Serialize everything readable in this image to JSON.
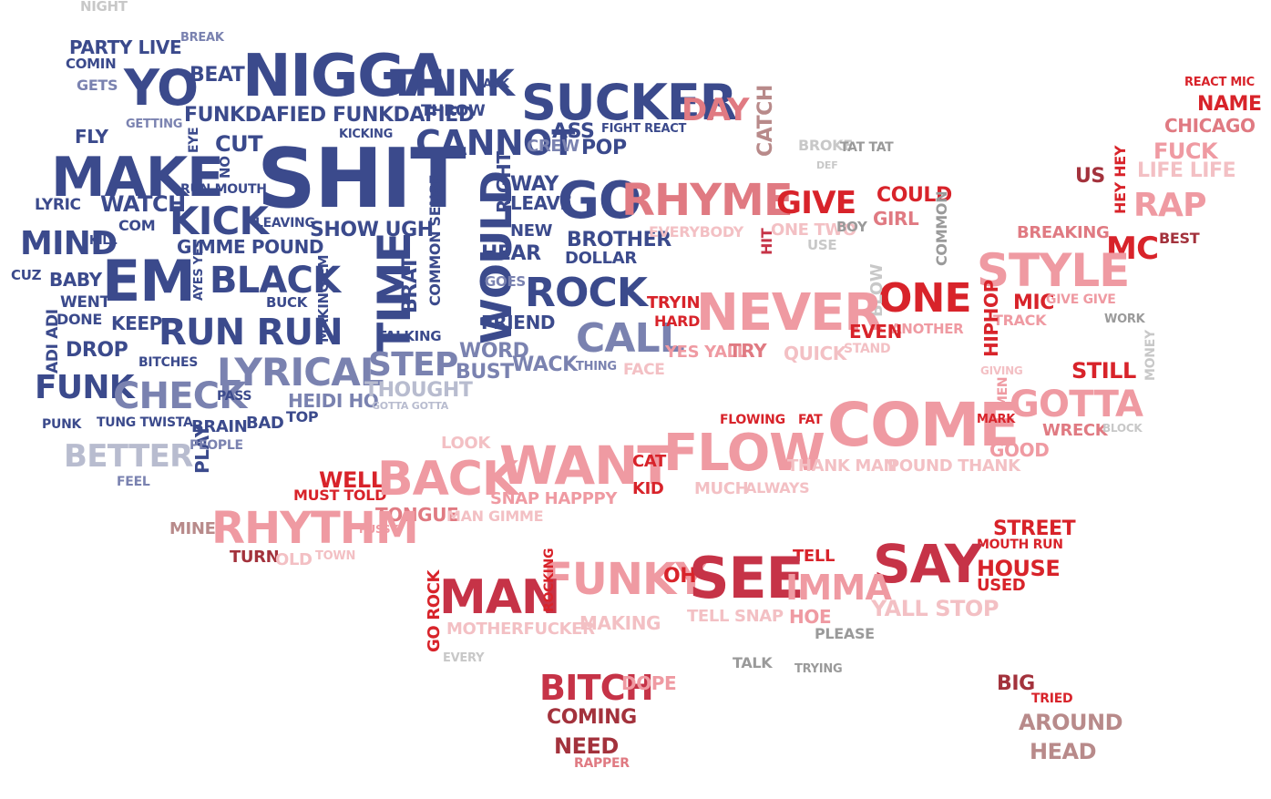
{
  "palette": {
    "navy": "#3b4a8c",
    "blue": "#4f5b9b",
    "slate": "#7a82b0",
    "lavender": "#b8bccf",
    "gray": "#9a9a9a",
    "lightgray": "#c8c8c8",
    "red": "#d8232a",
    "crimson": "#c63347",
    "maroon": "#a3323c",
    "rose": "#e07a82",
    "pink": "#ef9aa2",
    "lightpink": "#f3c0c4",
    "mauve": "#b88a8a"
  },
  "words": [
    {
      "text": "NIGHT",
      "color": "lightgray"
    },
    {
      "text": "PARTY LIVE",
      "color": "navy"
    },
    {
      "text": "BREAK",
      "color": "slate"
    },
    {
      "text": "COMIN",
      "color": "navy"
    },
    {
      "text": "GETS",
      "color": "slate"
    },
    {
      "text": "YO",
      "color": "navy"
    },
    {
      "text": "BEAT",
      "color": "navy"
    },
    {
      "text": "NIGGA",
      "color": "navy"
    },
    {
      "text": "THINK",
      "color": "navy"
    },
    {
      "text": "ASK",
      "color": "navy"
    },
    {
      "text": "SUCKER",
      "color": "navy"
    },
    {
      "text": "THROW",
      "color": "navy"
    },
    {
      "text": "GETTING",
      "color": "slate"
    },
    {
      "text": "FUNKDAFIED FUNKDAFIED",
      "color": "navy"
    },
    {
      "text": "FLY",
      "color": "navy"
    },
    {
      "text": "EYE",
      "color": "navy"
    },
    {
      "text": "CUT",
      "color": "navy"
    },
    {
      "text": "KICKING",
      "color": "navy"
    },
    {
      "text": "ASS",
      "color": "navy"
    },
    {
      "text": "FIGHT REACT",
      "color": "navy"
    },
    {
      "text": "CANNOT",
      "color": "navy"
    },
    {
      "text": "CREW",
      "color": "slate"
    },
    {
      "text": "POP",
      "color": "navy"
    },
    {
      "text": "MAKE",
      "color": "navy"
    },
    {
      "text": "SHIT",
      "color": "navy"
    },
    {
      "text": "NO",
      "color": "navy"
    },
    {
      "text": "RUN MOUTH",
      "color": "navy"
    },
    {
      "text": "LYRIC",
      "color": "navy"
    },
    {
      "text": "WATCH",
      "color": "navy"
    },
    {
      "text": "COMMON SENSE",
      "color": "navy"
    },
    {
      "text": "RIGHT",
      "color": "navy"
    },
    {
      "text": "WAY",
      "color": "navy"
    },
    {
      "text": "LEAVE",
      "color": "navy"
    },
    {
      "text": "GO",
      "color": "navy"
    },
    {
      "text": "KICK",
      "color": "navy"
    },
    {
      "text": "COM",
      "color": "navy"
    },
    {
      "text": "LEAVING",
      "color": "navy"
    },
    {
      "text": "SHOW UGH",
      "color": "navy"
    },
    {
      "text": "NEW",
      "color": "navy"
    },
    {
      "text": "BROTHER",
      "color": "navy"
    },
    {
      "text": "MIND",
      "color": "navy"
    },
    {
      "text": "KILL",
      "color": "navy"
    },
    {
      "text": "GIMME POUND",
      "color": "navy"
    },
    {
      "text": "WOULD",
      "color": "navy"
    },
    {
      "text": "HEAR",
      "color": "navy"
    },
    {
      "text": "DOLLAR",
      "color": "navy"
    },
    {
      "text": "CUZ",
      "color": "navy"
    },
    {
      "text": "BABY",
      "color": "navy"
    },
    {
      "text": "EM",
      "color": "navy"
    },
    {
      "text": "AYES YES",
      "color": "navy"
    },
    {
      "text": "BLACK",
      "color": "navy"
    },
    {
      "text": "BUCK",
      "color": "navy"
    },
    {
      "text": "MAKING EM",
      "color": "navy"
    },
    {
      "text": "TIME",
      "color": "navy"
    },
    {
      "text": "BRAT",
      "color": "navy"
    },
    {
      "text": "GOES",
      "color": "slate"
    },
    {
      "text": "ROCK",
      "color": "navy"
    },
    {
      "text": "WENT",
      "color": "navy"
    },
    {
      "text": "ADI ADI",
      "color": "navy"
    },
    {
      "text": "DONE",
      "color": "navy"
    },
    {
      "text": "KEEP",
      "color": "navy"
    },
    {
      "text": "RUN RUN",
      "color": "navy"
    },
    {
      "text": "FRIEND",
      "color": "navy"
    },
    {
      "text": "TALKING",
      "color": "navy"
    },
    {
      "text": "CALL",
      "color": "slate"
    },
    {
      "text": "DROP",
      "color": "navy"
    },
    {
      "text": "BITCHES",
      "color": "navy"
    },
    {
      "text": "LYRICAL",
      "color": "slate"
    },
    {
      "text": "STEP",
      "color": "slate"
    },
    {
      "text": "WORD",
      "color": "slate"
    },
    {
      "text": "BUST",
      "color": "slate"
    },
    {
      "text": "WACK",
      "color": "slate"
    },
    {
      "text": "THING",
      "color": "slate"
    },
    {
      "text": "FUNK",
      "color": "navy"
    },
    {
      "text": "CHECK",
      "color": "slate"
    },
    {
      "text": "PASS",
      "color": "navy"
    },
    {
      "text": "HEIDI HO",
      "color": "slate"
    },
    {
      "text": "THOUGHT",
      "color": "lavender"
    },
    {
      "text": "GOTTA GOTTA",
      "color": "lavender"
    },
    {
      "text": "PUNK",
      "color": "navy"
    },
    {
      "text": "TUNG TWISTA",
      "color": "navy"
    },
    {
      "text": "PLAY",
      "color": "navy"
    },
    {
      "text": "BRAIN",
      "color": "navy"
    },
    {
      "text": "BAD",
      "color": "navy"
    },
    {
      "text": "TOP",
      "color": "navy"
    },
    {
      "text": "PEOPLE",
      "color": "slate"
    },
    {
      "text": "BETTER",
      "color": "lavender"
    },
    {
      "text": "FEEL",
      "color": "slate"
    },
    {
      "text": "DAY",
      "color": "rose"
    },
    {
      "text": "CATCH",
      "color": "mauve"
    },
    {
      "text": "BROKE",
      "color": "lightgray"
    },
    {
      "text": "TAT TAT",
      "color": "gray"
    },
    {
      "text": "DEF",
      "color": "lightgray"
    },
    {
      "text": "RHYME",
      "color": "rose"
    },
    {
      "text": "GIVE",
      "color": "red"
    },
    {
      "text": "COULD",
      "color": "red"
    },
    {
      "text": "GIRL",
      "color": "rose"
    },
    {
      "text": "COMMON",
      "color": "gray"
    },
    {
      "text": "EVERYBODY",
      "color": "lightpink"
    },
    {
      "text": "HIT",
      "color": "crimson"
    },
    {
      "text": "ONE TWO",
      "color": "lightpink"
    },
    {
      "text": "BOY",
      "color": "gray"
    },
    {
      "text": "USE",
      "color": "lightgray"
    },
    {
      "text": "REACT MIC",
      "color": "red"
    },
    {
      "text": "NAME",
      "color": "red"
    },
    {
      "text": "CHICAGO",
      "color": "rose"
    },
    {
      "text": "FUCK",
      "color": "pink"
    },
    {
      "text": "US",
      "color": "maroon"
    },
    {
      "text": "HEY HEY",
      "color": "red"
    },
    {
      "text": "LIFE LIFE",
      "color": "lightpink"
    },
    {
      "text": "RAP",
      "color": "pink"
    },
    {
      "text": "BREAKING",
      "color": "rose"
    },
    {
      "text": "MC",
      "color": "red"
    },
    {
      "text": "BEST",
      "color": "maroon"
    },
    {
      "text": "STYLE",
      "color": "pink"
    },
    {
      "text": "MIC",
      "color": "red"
    },
    {
      "text": "GIVE GIVE",
      "color": "pink"
    },
    {
      "text": "TRACK",
      "color": "pink"
    },
    {
      "text": "ONE",
      "color": "red"
    },
    {
      "text": "BLOW",
      "color": "lightgray"
    },
    {
      "text": "ANOTHER",
      "color": "pink"
    },
    {
      "text": "HIPHOP",
      "color": "red"
    },
    {
      "text": "WORK",
      "color": "gray"
    },
    {
      "text": "MONEY",
      "color": "lightgray"
    },
    {
      "text": "TRYIN",
      "color": "red"
    },
    {
      "text": "HARD",
      "color": "red"
    },
    {
      "text": "NEVER",
      "color": "pink"
    },
    {
      "text": "EVEN",
      "color": "red"
    },
    {
      "text": "STAND",
      "color": "lightpink"
    },
    {
      "text": "YES YALL",
      "color": "pink"
    },
    {
      "text": "TRY",
      "color": "rose"
    },
    {
      "text": "QUICK",
      "color": "lightpink"
    },
    {
      "text": "FACE",
      "color": "lightpink"
    },
    {
      "text": "GIVING",
      "color": "lightpink"
    },
    {
      "text": "STILL",
      "color": "red"
    },
    {
      "text": "MEN",
      "color": "pink"
    },
    {
      "text": "GOTTA",
      "color": "pink"
    },
    {
      "text": "COME",
      "color": "pink"
    },
    {
      "text": "MARK",
      "color": "red"
    },
    {
      "text": "WRECK",
      "color": "rose"
    },
    {
      "text": "BLOCK",
      "color": "lightgray"
    },
    {
      "text": "FLOWING",
      "color": "red"
    },
    {
      "text": "FAT",
      "color": "red"
    },
    {
      "text": "GOOD",
      "color": "pink"
    },
    {
      "text": "LOOK",
      "color": "lightpink"
    },
    {
      "text": "WANT",
      "color": "pink"
    },
    {
      "text": "FLOW",
      "color": "pink"
    },
    {
      "text": "CAT",
      "color": "red"
    },
    {
      "text": "KID",
      "color": "red"
    },
    {
      "text": "THANK MAN",
      "color": "lightpink"
    },
    {
      "text": "POUND THANK",
      "color": "lightpink"
    },
    {
      "text": "WELL",
      "color": "red"
    },
    {
      "text": "MUST TOLD",
      "color": "red"
    },
    {
      "text": "BACK",
      "color": "pink"
    },
    {
      "text": "SNAP HAPPPY",
      "color": "pink"
    },
    {
      "text": "MUCH",
      "color": "lightpink"
    },
    {
      "text": "ALWAYS",
      "color": "lightpink"
    },
    {
      "text": "TONGUE",
      "color": "rose"
    },
    {
      "text": "MAN GIMME",
      "color": "lightpink"
    },
    {
      "text": "MINE",
      "color": "mauve"
    },
    {
      "text": "RHYTHM",
      "color": "pink"
    },
    {
      "text": "PUSSY",
      "color": "pink"
    },
    {
      "text": "TURN",
      "color": "maroon"
    },
    {
      "text": "OLD",
      "color": "lightpink"
    },
    {
      "text": "TOWN",
      "color": "lightpink"
    },
    {
      "text": "STREET",
      "color": "red"
    },
    {
      "text": "MOUTH RUN",
      "color": "red"
    },
    {
      "text": "TELL",
      "color": "red"
    },
    {
      "text": "SAY",
      "color": "crimson"
    },
    {
      "text": "HOUSE",
      "color": "red"
    },
    {
      "text": "USED",
      "color": "red"
    },
    {
      "text": "FUNKY",
      "color": "pink"
    },
    {
      "text": "OH",
      "color": "red"
    },
    {
      "text": "SEE",
      "color": "crimson"
    },
    {
      "text": "IMMA",
      "color": "pink"
    },
    {
      "text": "GO ROCK",
      "color": "red"
    },
    {
      "text": "MAN",
      "color": "crimson"
    },
    {
      "text": "ROCKING",
      "color": "red"
    },
    {
      "text": "YALL STOP",
      "color": "lightpink"
    },
    {
      "text": "TELL SNAP",
      "color": "lightpink"
    },
    {
      "text": "HOE",
      "color": "pink"
    },
    {
      "text": "MOTHERFUCKER",
      "color": "lightpink"
    },
    {
      "text": "MAKING",
      "color": "lightpink"
    },
    {
      "text": "PLEASE",
      "color": "gray"
    },
    {
      "text": "EVERY",
      "color": "lightgray"
    },
    {
      "text": "TALK",
      "color": "gray"
    },
    {
      "text": "TRYING",
      "color": "gray"
    },
    {
      "text": "BITCH",
      "color": "crimson"
    },
    {
      "text": "DOPE",
      "color": "pink"
    },
    {
      "text": "COMING",
      "color": "maroon"
    },
    {
      "text": "NEED",
      "color": "maroon"
    },
    {
      "text": "RAPPER",
      "color": "rose"
    },
    {
      "text": "BIG",
      "color": "maroon"
    },
    {
      "text": "TRIED",
      "color": "red"
    },
    {
      "text": "AROUND",
      "color": "mauve"
    },
    {
      "text": "HEAD",
      "color": "mauve"
    }
  ]
}
